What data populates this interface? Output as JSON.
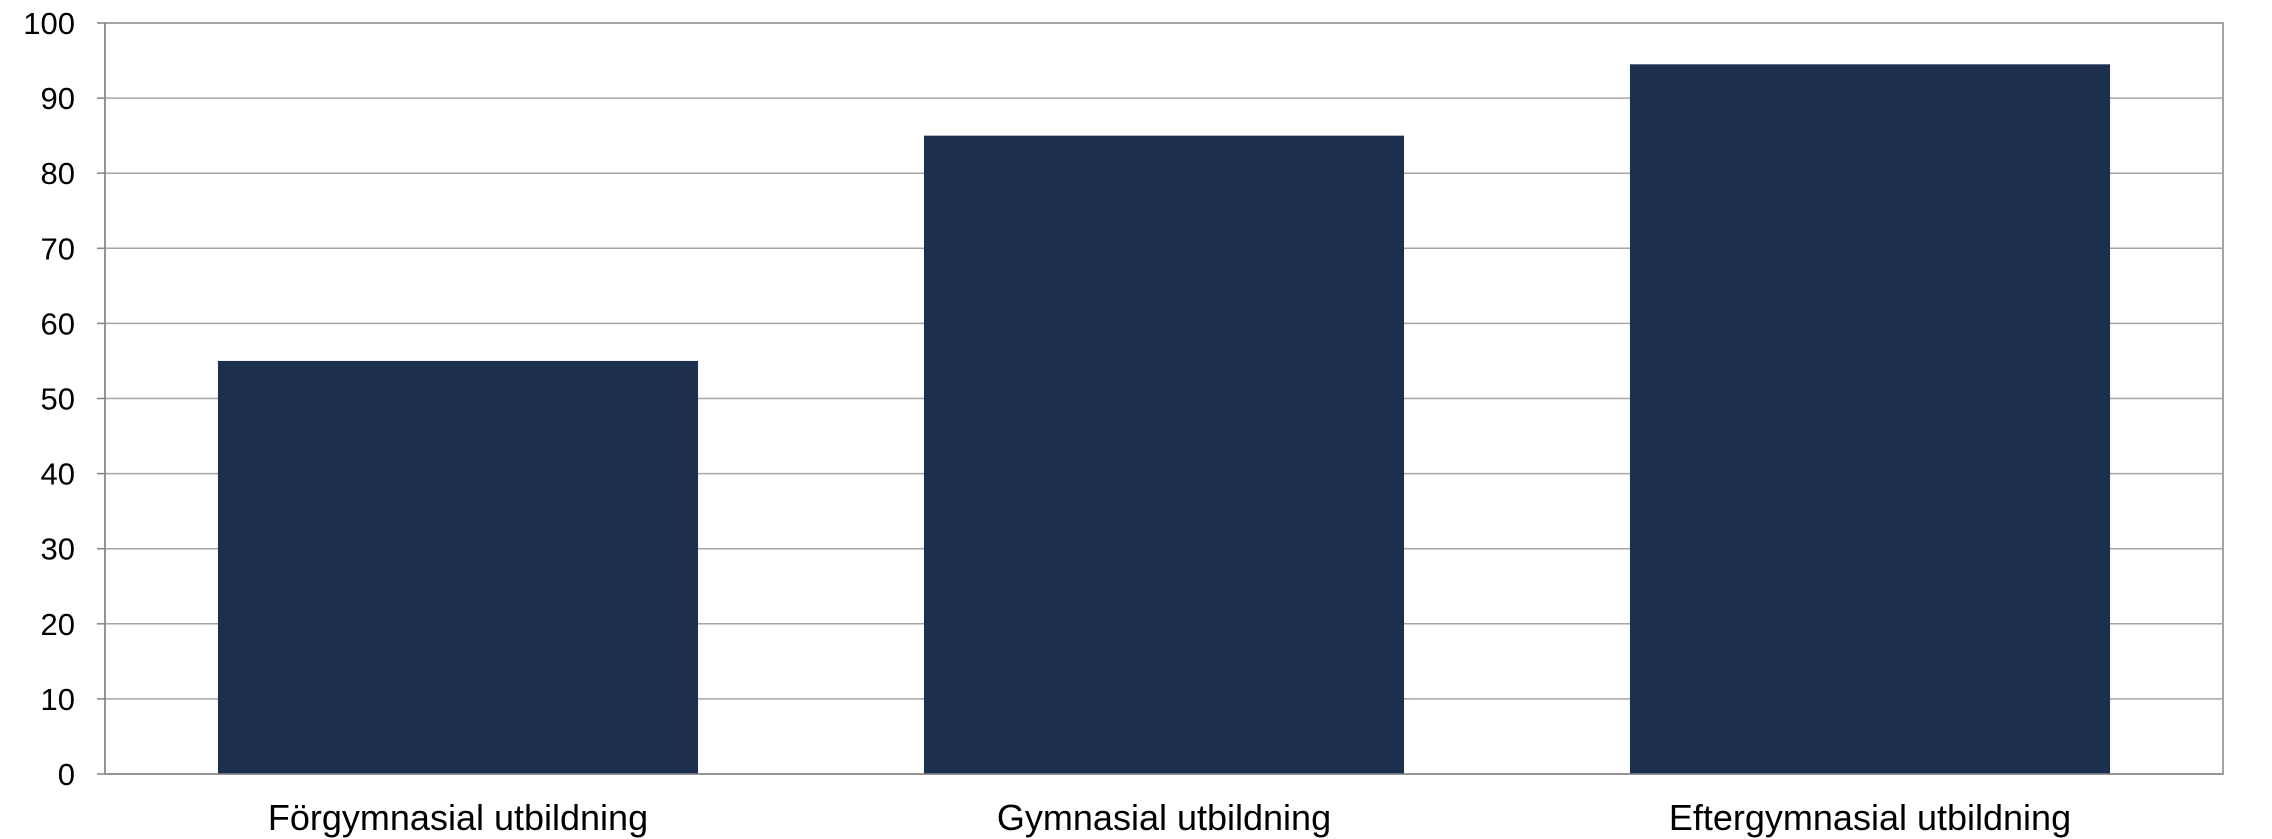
{
  "chart_data": {
    "type": "bar",
    "categories": [
      "Förgymnasial utbildning",
      "Gymnasial utbildning",
      "Eftergymnasial utbildning"
    ],
    "values": [
      55,
      85,
      94.5
    ],
    "title": "",
    "xlabel": "",
    "ylabel": "",
    "ylim": [
      0,
      100
    ],
    "yticks": [
      0,
      10,
      20,
      30,
      40,
      50,
      60,
      70,
      80,
      90,
      100
    ],
    "grid": true,
    "legend": "none",
    "bar_color": "#1c2f4f",
    "grid_color": "#a6a6a6",
    "axis_color": "#868686"
  }
}
